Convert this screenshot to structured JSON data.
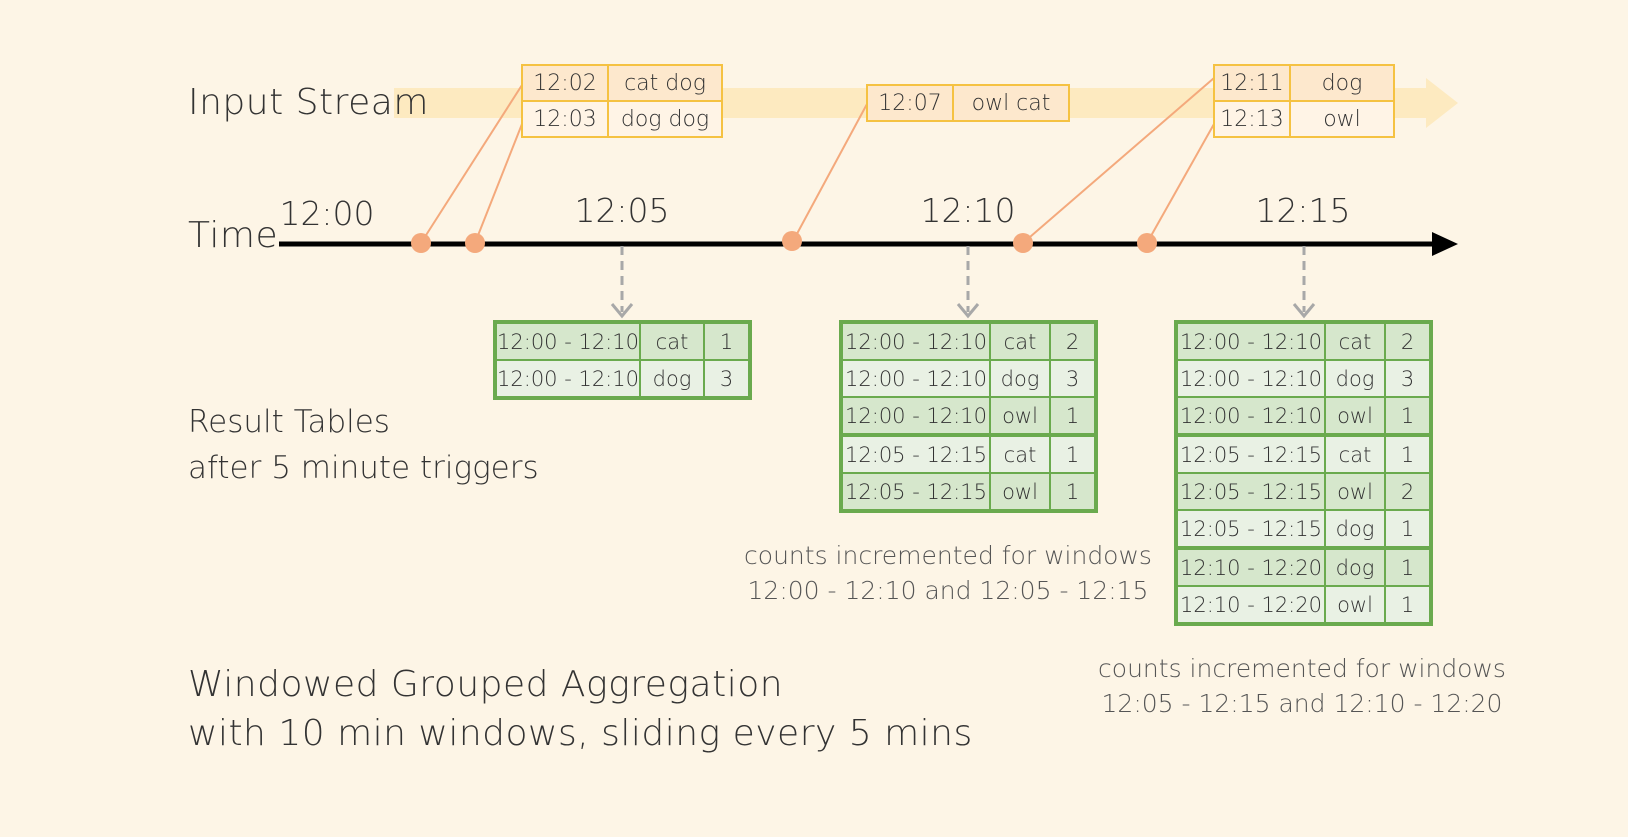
{
  "labels": {
    "input_stream": "Input Stream",
    "time": "Time",
    "result_tables_line1": "Result Tables",
    "result_tables_line2": "after 5 minute triggers",
    "title_line1": "Windowed Grouped Aggregation",
    "title_line2": "with 10 min windows, sliding every 5 mins"
  },
  "time_ticks": [
    "12:00",
    "12:05",
    "12:10",
    "12:15"
  ],
  "input_events": [
    {
      "time": "12:02",
      "words": "cat dog"
    },
    {
      "time": "12:03",
      "words": "dog dog"
    },
    {
      "time": "12:07",
      "words": "owl cat"
    },
    {
      "time": "12:11",
      "words": "dog"
    },
    {
      "time": "12:13",
      "words": "owl"
    }
  ],
  "result_tables": [
    {
      "rows": [
        {
          "window": "12:00 - 12:10",
          "word": "cat",
          "count": "1"
        },
        {
          "window": "12:00 - 12:10",
          "word": "dog",
          "count": "3"
        }
      ]
    },
    {
      "rows": [
        {
          "window": "12:00 - 12:10",
          "word": "cat",
          "count": "2"
        },
        {
          "window": "12:00 - 12:10",
          "word": "dog",
          "count": "3"
        },
        {
          "window": "12:00 - 12:10",
          "word": "owl",
          "count": "1"
        },
        {
          "window": "12:05 - 12:15",
          "word": "cat",
          "count": "1"
        },
        {
          "window": "12:05 - 12:15",
          "word": "owl",
          "count": "1"
        }
      ],
      "note_line1": "counts incremented for windows",
      "note_line2": "12:00 - 12:10 and 12:05 - 12:15"
    },
    {
      "rows": [
        {
          "window": "12:00 - 12:10",
          "word": "cat",
          "count": "2"
        },
        {
          "window": "12:00 - 12:10",
          "word": "dog",
          "count": "3"
        },
        {
          "window": "12:00 - 12:10",
          "word": "owl",
          "count": "1"
        },
        {
          "window": "12:05 - 12:15",
          "word": "cat",
          "count": "1"
        },
        {
          "window": "12:05 - 12:15",
          "word": "owl",
          "count": "2"
        },
        {
          "window": "12:05 - 12:15",
          "word": "dog",
          "count": "1"
        },
        {
          "window": "12:10 - 12:20",
          "word": "dog",
          "count": "1"
        },
        {
          "window": "12:10 - 12:20",
          "word": "owl",
          "count": "1"
        }
      ],
      "note_line1": "counts incremented for windows",
      "note_line2": "12:05 - 12:15 and 12:10 - 12:20"
    }
  ],
  "colors": {
    "background": "#fdf5e6",
    "stream_band": "#fdeac0",
    "event_border": "#f5c242",
    "event_dot": "#f4a97c",
    "connector": "#f4a97c",
    "result_border": "#6aaa4e",
    "result_shade": "#d6e7cc",
    "result_light": "#e9f1e4",
    "axis": "#000000",
    "trigger_arrow": "#a8a8a8"
  }
}
